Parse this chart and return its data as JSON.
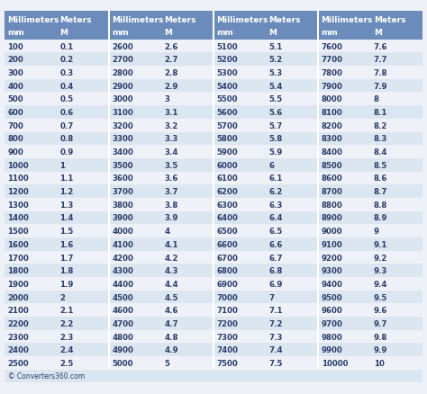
{
  "footer": "© Converters360.com",
  "header_bg": "#6b8cba",
  "header_text_color": "#ffffff",
  "row_bg_odd": "#dce6f1",
  "row_bg_even": "#eef2f8",
  "col_header_line1": [
    "Millimeters",
    "Meters"
  ],
  "col_header_line2": [
    "mm",
    "M"
  ],
  "num_cols": 4,
  "data": [
    [
      100,
      0.1
    ],
    [
      200,
      0.2
    ],
    [
      300,
      0.3
    ],
    [
      400,
      0.4
    ],
    [
      500,
      0.5
    ],
    [
      600,
      0.6
    ],
    [
      700,
      0.7
    ],
    [
      800,
      0.8
    ],
    [
      900,
      0.9
    ],
    [
      1000,
      1
    ],
    [
      1100,
      1.1
    ],
    [
      1200,
      1.2
    ],
    [
      1300,
      1.3
    ],
    [
      1400,
      1.4
    ],
    [
      1500,
      1.5
    ],
    [
      1600,
      1.6
    ],
    [
      1700,
      1.7
    ],
    [
      1800,
      1.8
    ],
    [
      1900,
      1.9
    ],
    [
      2000,
      2
    ],
    [
      2100,
      2.1
    ],
    [
      2200,
      2.2
    ],
    [
      2300,
      2.3
    ],
    [
      2400,
      2.4
    ],
    [
      2500,
      2.5
    ],
    [
      2600,
      2.6
    ],
    [
      2700,
      2.7
    ],
    [
      2800,
      2.8
    ],
    [
      2900,
      2.9
    ],
    [
      3000,
      3
    ],
    [
      3100,
      3.1
    ],
    [
      3200,
      3.2
    ],
    [
      3300,
      3.3
    ],
    [
      3400,
      3.4
    ],
    [
      3500,
      3.5
    ],
    [
      3600,
      3.6
    ],
    [
      3700,
      3.7
    ],
    [
      3800,
      3.8
    ],
    [
      3900,
      3.9
    ],
    [
      4000,
      4
    ],
    [
      4100,
      4.1
    ],
    [
      4200,
      4.2
    ],
    [
      4300,
      4.3
    ],
    [
      4400,
      4.4
    ],
    [
      4500,
      4.5
    ],
    [
      4600,
      4.6
    ],
    [
      4700,
      4.7
    ],
    [
      4800,
      4.8
    ],
    [
      4900,
      4.9
    ],
    [
      5000,
      5
    ],
    [
      5100,
      5.1
    ],
    [
      5200,
      5.2
    ],
    [
      5300,
      5.3
    ],
    [
      5400,
      5.4
    ],
    [
      5500,
      5.5
    ],
    [
      5600,
      5.6
    ],
    [
      5700,
      5.7
    ],
    [
      5800,
      5.8
    ],
    [
      5900,
      5.9
    ],
    [
      6000,
      6
    ],
    [
      6100,
      6.1
    ],
    [
      6200,
      6.2
    ],
    [
      6300,
      6.3
    ],
    [
      6400,
      6.4
    ],
    [
      6500,
      6.5
    ],
    [
      6600,
      6.6
    ],
    [
      6700,
      6.7
    ],
    [
      6800,
      6.8
    ],
    [
      6900,
      6.9
    ],
    [
      7000,
      7
    ],
    [
      7100,
      7.1
    ],
    [
      7200,
      7.2
    ],
    [
      7300,
      7.3
    ],
    [
      7400,
      7.4
    ],
    [
      7500,
      7.5
    ],
    [
      7600,
      7.6
    ],
    [
      7700,
      7.7
    ],
    [
      7800,
      7.8
    ],
    [
      7900,
      7.9
    ],
    [
      8000,
      8
    ],
    [
      8100,
      8.1
    ],
    [
      8200,
      8.2
    ],
    [
      8300,
      8.3
    ],
    [
      8400,
      8.4
    ],
    [
      8500,
      8.5
    ],
    [
      8600,
      8.6
    ],
    [
      8700,
      8.7
    ],
    [
      8800,
      8.8
    ],
    [
      8900,
      8.9
    ],
    [
      9000,
      9
    ],
    [
      9100,
      9.1
    ],
    [
      9200,
      9.2
    ],
    [
      9300,
      9.3
    ],
    [
      9400,
      9.4
    ],
    [
      9500,
      9.5
    ],
    [
      9600,
      9.6
    ],
    [
      9700,
      9.7
    ],
    [
      9800,
      9.8
    ],
    [
      9900,
      9.9
    ],
    [
      10000,
      10
    ]
  ],
  "font_size_header": 6.5,
  "font_size_data": 6.2,
  "font_size_footer": 5.5,
  "text_color_data": "#2c3e6b",
  "footer_bg": "#dce6f1"
}
